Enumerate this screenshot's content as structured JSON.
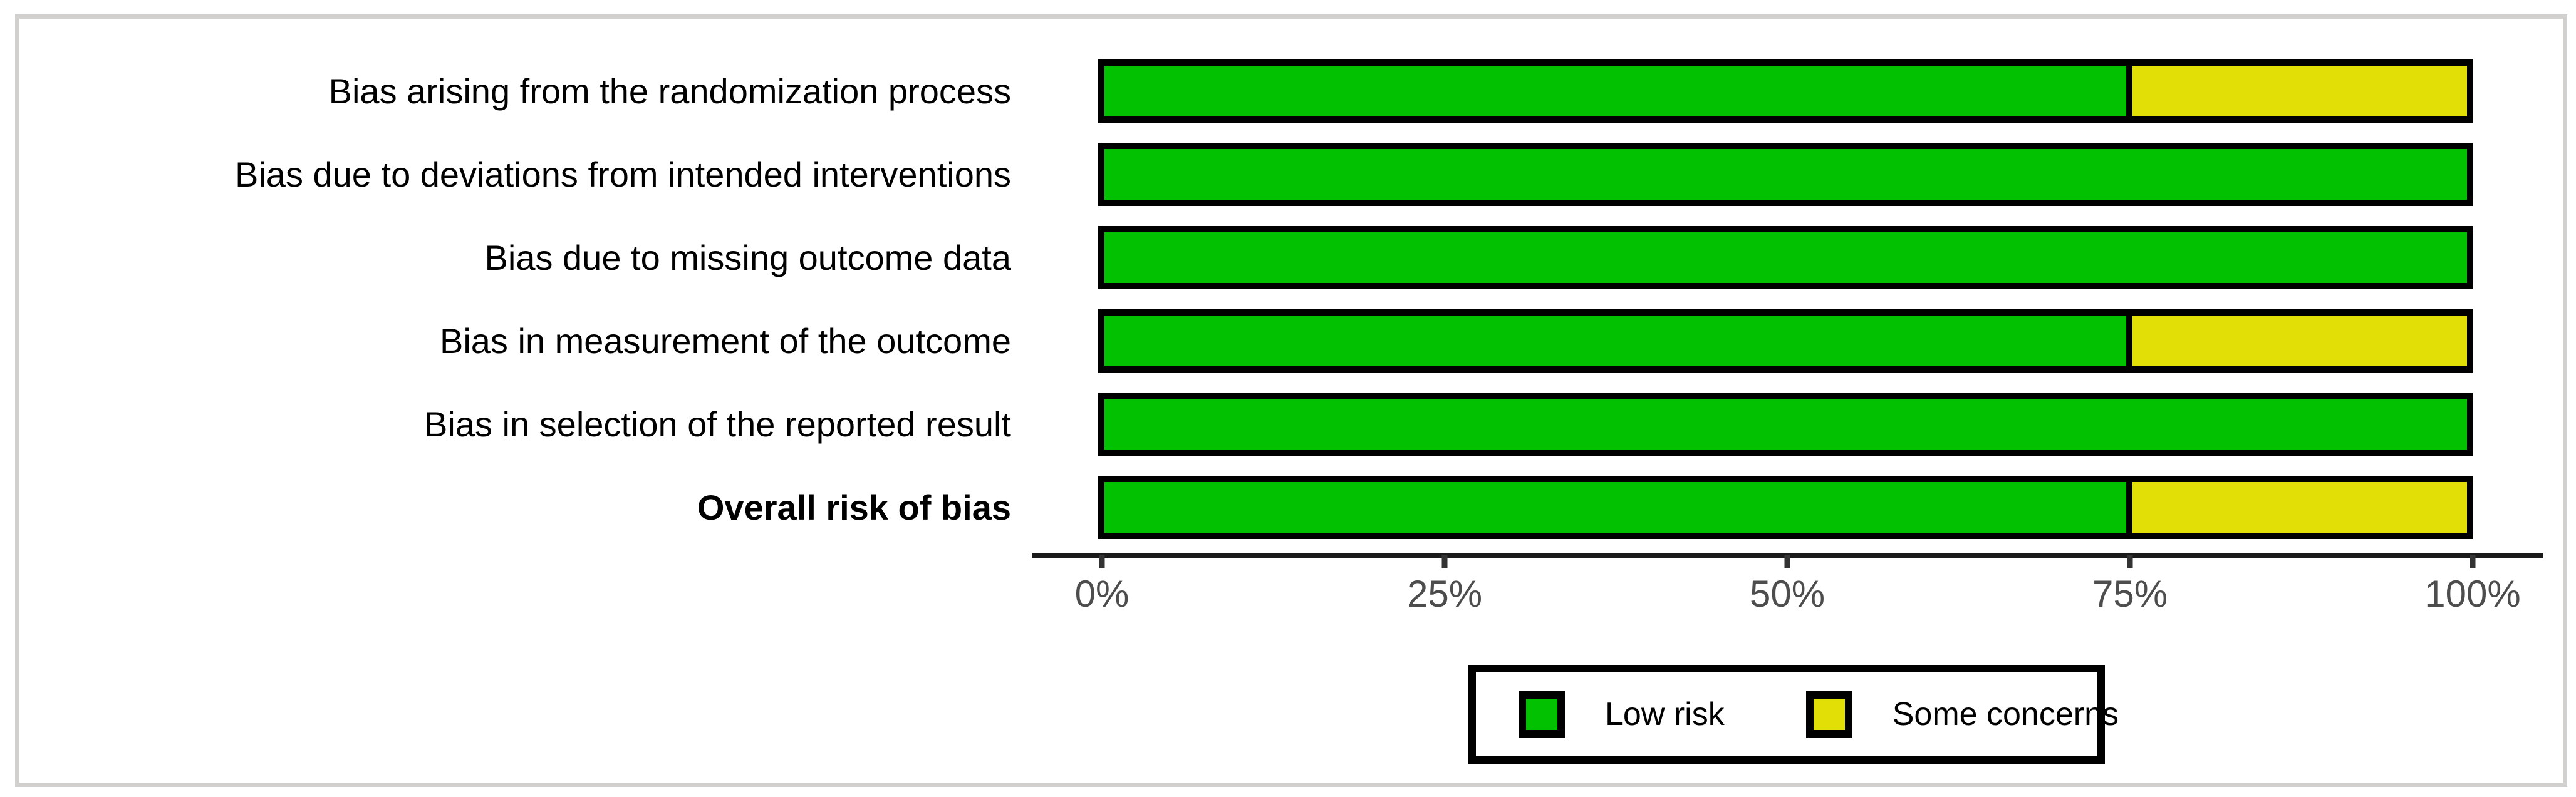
{
  "chart_data": {
    "type": "bar",
    "stacked": true,
    "orientation": "horizontal",
    "title": "",
    "xlabel": "",
    "ylabel": "",
    "xlim": [
      0,
      100
    ],
    "x_ticks": [
      "0%",
      "25%",
      "50%",
      "75%",
      "100%"
    ],
    "x_tick_values": [
      0,
      25,
      50,
      75,
      100
    ],
    "grid": false,
    "legend_position": "bottom",
    "categories": [
      "Bias arising from the randomization process",
      "Bias due to deviations from intended interventions",
      "Bias due to missing outcome data",
      "Bias in measurement of the outcome",
      "Bias in selection of the reported result",
      "Overall risk of bias"
    ],
    "bold_categories": [
      "Overall risk of bias"
    ],
    "series": [
      {
        "name": "Low risk",
        "color": "#02C100",
        "values": [
          75,
          100,
          100,
          75,
          100,
          75
        ]
      },
      {
        "name": "Some concerns",
        "color": "#E2DF07",
        "values": [
          25,
          0,
          0,
          25,
          0,
          25
        ]
      }
    ]
  },
  "legend": {
    "items": [
      {
        "label": "Low risk",
        "color": "#02C100",
        "icon": "low-risk-swatch"
      },
      {
        "label": "Some concerns",
        "color": "#E2DF07",
        "icon": "some-concerns-swatch"
      }
    ]
  },
  "colors": {
    "low_risk": "#02C100",
    "some_concerns": "#E2DF07",
    "bar_border": "#000000",
    "axis_line": "#1a1a1a",
    "axis_tick": "#333333",
    "axis_text": "#4D4D4D",
    "frame": "#D1D0CE",
    "background": "#ffffff"
  }
}
